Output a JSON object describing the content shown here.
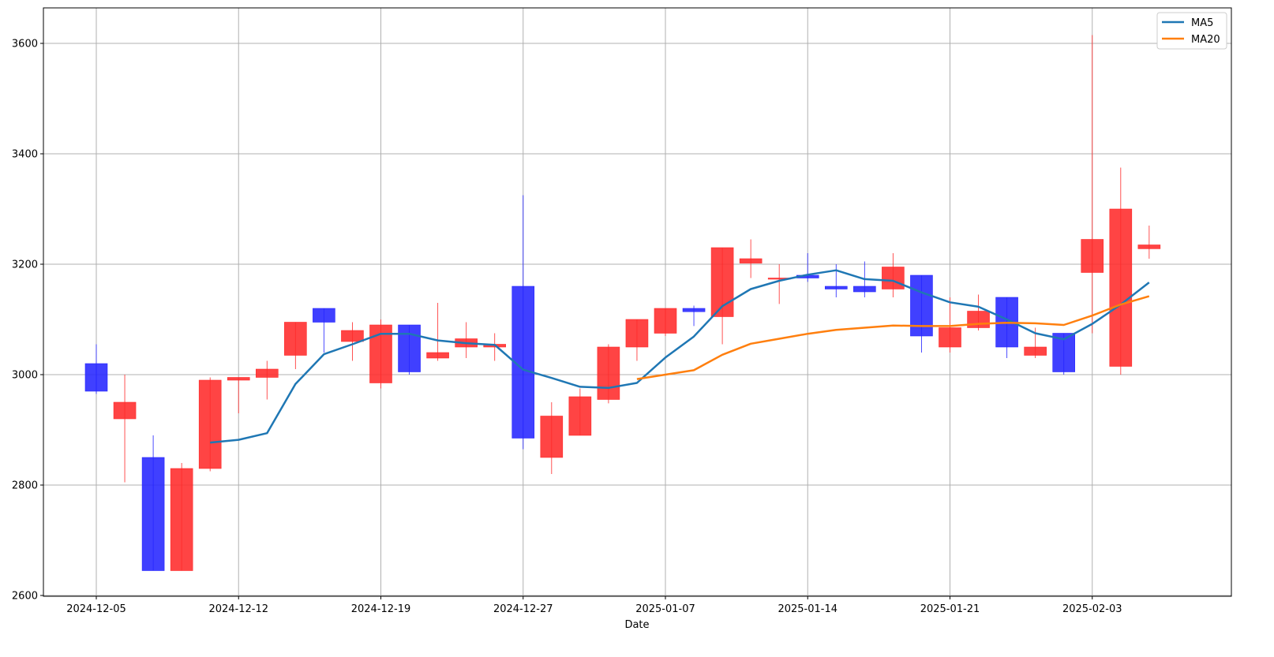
{
  "chart_data": {
    "type": "candlestick",
    "title": "",
    "xlabel": "Date",
    "ylabel": "",
    "ylim": [
      2595,
      3665
    ],
    "grid": true,
    "legend_position": "top-right",
    "colors": {
      "up": "#ff2a2a",
      "down": "#2525ff",
      "ma5": "#1f77b4",
      "ma20": "#ff7f0e",
      "grid": "#b0b0b0"
    },
    "x_ticks": [
      "2024-12-05",
      "2024-12-12",
      "2024-12-19",
      "2024-12-27",
      "2025-01-07",
      "2025-01-14",
      "2025-01-21",
      "2025-02-03"
    ],
    "x_tick_index": [
      0,
      5,
      10,
      15,
      20,
      25,
      30,
      35
    ],
    "y_ticks": [
      2600,
      2800,
      3000,
      3200,
      3400,
      3600
    ],
    "candles": [
      {
        "o": 3020,
        "h": 3055,
        "l": 2965,
        "c": 2970
      },
      {
        "o": 2920,
        "h": 3000,
        "l": 2805,
        "c": 2950
      },
      {
        "o": 2850,
        "h": 2890,
        "l": 2645,
        "c": 2645
      },
      {
        "o": 2645,
        "h": 2840,
        "l": 2645,
        "c": 2830
      },
      {
        "o": 2830,
        "h": 2995,
        "l": 2825,
        "c": 2990
      },
      {
        "o": 2990,
        "h": 2995,
        "l": 2930,
        "c": 2995
      },
      {
        "o": 2995,
        "h": 3025,
        "l": 2955,
        "c": 3010
      },
      {
        "o": 3035,
        "h": 3095,
        "l": 3010,
        "c": 3095
      },
      {
        "o": 3120,
        "h": 3120,
        "l": 3040,
        "c": 3095
      },
      {
        "o": 3060,
        "h": 3095,
        "l": 3025,
        "c": 3080
      },
      {
        "o": 2985,
        "h": 3100,
        "l": 2975,
        "c": 3090
      },
      {
        "o": 3090,
        "h": 3090,
        "l": 3000,
        "c": 3005
      },
      {
        "o": 3030,
        "h": 3130,
        "l": 3025,
        "c": 3040
      },
      {
        "o": 3050,
        "h": 3095,
        "l": 3030,
        "c": 3065
      },
      {
        "o": 3050,
        "h": 3075,
        "l": 3025,
        "c": 3055
      },
      {
        "o": 3160,
        "h": 3325,
        "l": 2865,
        "c": 2885
      },
      {
        "o": 2850,
        "h": 2950,
        "l": 2820,
        "c": 2925
      },
      {
        "o": 2890,
        "h": 2975,
        "l": 2890,
        "c": 2960
      },
      {
        "o": 2955,
        "h": 3055,
        "l": 2948,
        "c": 3050
      },
      {
        "o": 3050,
        "h": 3100,
        "l": 3025,
        "c": 3100
      },
      {
        "o": 3075,
        "h": 3120,
        "l": 3070,
        "c": 3120
      },
      {
        "o": 3120,
        "h": 3125,
        "l": 3088,
        "c": 3114
      },
      {
        "o": 3105,
        "h": 3230,
        "l": 3055,
        "c": 3230
      },
      {
        "o": 3202,
        "h": 3245,
        "l": 3175,
        "c": 3210
      },
      {
        "o": 3175,
        "h": 3200,
        "l": 3128,
        "c": 3175
      },
      {
        "o": 3180,
        "h": 3220,
        "l": 3168,
        "c": 3175
      },
      {
        "o": 3160,
        "h": 3200,
        "l": 3140,
        "c": 3155
      },
      {
        "o": 3160,
        "h": 3205,
        "l": 3140,
        "c": 3150
      },
      {
        "o": 3155,
        "h": 3220,
        "l": 3140,
        "c": 3195
      },
      {
        "o": 3180,
        "h": 3180,
        "l": 3040,
        "c": 3070
      },
      {
        "o": 3050,
        "h": 3140,
        "l": 3040,
        "c": 3085
      },
      {
        "o": 3085,
        "h": 3145,
        "l": 3080,
        "c": 3115
      },
      {
        "o": 3140,
        "h": 3140,
        "l": 3030,
        "c": 3050
      },
      {
        "o": 3035,
        "h": 3085,
        "l": 3030,
        "c": 3050
      },
      {
        "o": 3075,
        "h": 3075,
        "l": 3000,
        "c": 3005
      },
      {
        "o": 3185,
        "h": 3615,
        "l": 3075,
        "c": 3245
      },
      {
        "o": 3015,
        "h": 3375,
        "l": 3000,
        "c": 3300
      },
      {
        "o": 3228,
        "h": 3270,
        "l": 3210,
        "c": 3235
      }
    ],
    "series": [
      {
        "name": "MA5",
        "start_index": 4,
        "values": [
          2877,
          2882,
          2894,
          2983,
          3037,
          3055,
          3074,
          3074,
          3062,
          3057,
          3054,
          3009,
          2994,
          2978,
          2976,
          2985,
          3031,
          3069,
          3124,
          3155,
          3170,
          3181,
          3189,
          3173,
          3170,
          3149,
          3131,
          3123,
          3100,
          3075,
          3064,
          3092,
          3127,
          3167
        ]
      },
      {
        "name": "MA20",
        "start_index": 19,
        "values": [
          2992,
          3000,
          3008,
          3036,
          3056,
          3065,
          3074,
          3081,
          3085,
          3089,
          3088,
          3088,
          3092,
          3094,
          3093,
          3090,
          3107,
          3127,
          3142
        ]
      }
    ]
  }
}
